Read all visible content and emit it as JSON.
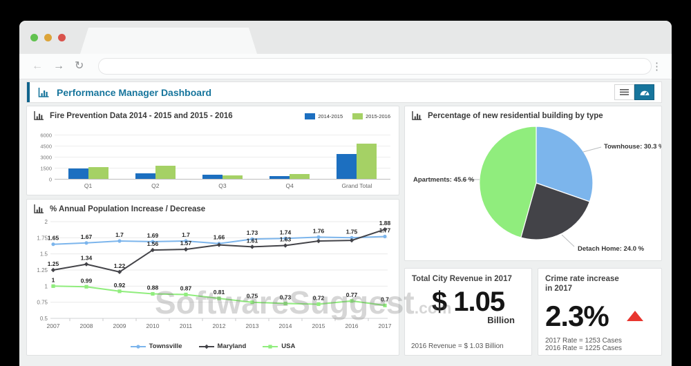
{
  "browser": {
    "back_icon": "←",
    "forward_icon": "→",
    "reload_icon": "↻",
    "menu_icon": "⋮",
    "url_value": ""
  },
  "header": {
    "title": "Performance Manager Dashboard"
  },
  "watermark": {
    "text": "SoftwareSuggest",
    "suffix": ".com"
  },
  "revenue_card": {
    "title": "Total City Revenue in 2017",
    "value": "$ 1.05",
    "unit": "Billion",
    "footnote": "2016 Revenue = $ 1.03 Billion"
  },
  "crime_card": {
    "title_line1": "Crime rate increase",
    "title_line2": "in 2017",
    "value": "2.3%",
    "footnote1": "2017 Rate = 1253 Cases",
    "footnote2": "2016 Rate = 1225 Cases"
  },
  "chart_data": [
    {
      "type": "bar",
      "title": "Fire Prevention Data 2014 - 2015 and 2015 - 2016",
      "categories": [
        "Q1",
        "Q2",
        "Q3",
        "Q4",
        "Grand Total"
      ],
      "series": [
        {
          "name": "2014-2015",
          "color": "#1c6fc0",
          "values": [
            1500,
            800,
            700,
            500,
            3500
          ]
        },
        {
          "name": "2015-2016",
          "color": "#a5d165",
          "values": [
            1650,
            1900,
            600,
            750,
            4900
          ]
        }
      ],
      "ylim": [
        0,
        6000
      ],
      "yticks": [
        0,
        1500,
        3000,
        4500,
        6000
      ],
      "legend_position": "top-right",
      "grid": true
    },
    {
      "type": "pie",
      "title": "Percentage of new residential building by type",
      "start": "top",
      "direction": "clockwise",
      "slices": [
        {
          "label": "Townhouse",
          "value": 30.3,
          "color": "#7cb5ec",
          "label_text": "Townhouse: 30.3 %"
        },
        {
          "label": "Detach Home",
          "value": 24.0,
          "color": "#434348",
          "label_text": "Detach Home: 24.0 %"
        },
        {
          "label": "Apartments",
          "value": 45.6,
          "color": "#90ed7d",
          "label_text": "Apartments: 45.6 %"
        }
      ]
    },
    {
      "type": "line",
      "title": "% Annual Population Increase / Decrease",
      "x": [
        2007,
        2008,
        2009,
        2010,
        2011,
        2012,
        2013,
        2014,
        2015,
        2016,
        2017
      ],
      "ylim": [
        0.5,
        2
      ],
      "yticks": [
        0.5,
        0.75,
        1,
        1.25,
        1.5,
        1.75,
        2
      ],
      "grid": true,
      "legend_position": "bottom",
      "series": [
        {
          "name": "Townsville",
          "color": "#7cb5ec",
          "marker": "circle",
          "values": [
            1.65,
            1.67,
            1.7,
            1.69,
            1.7,
            1.66,
            1.73,
            1.74,
            1.76,
            1.75,
            1.77
          ],
          "labels": [
            "1.65",
            "1.67",
            "1.7",
            "1.69",
            "1.7",
            "1.66",
            "1.73",
            "1.74",
            "1.76",
            "1.75",
            "1.77"
          ]
        },
        {
          "name": "Maryland",
          "color": "#434348",
          "marker": "diamond",
          "values": [
            1.25,
            1.34,
            1.22,
            1.56,
            1.57,
            1.64,
            1.61,
            1.63,
            1.7,
            1.71,
            1.88
          ],
          "labels": [
            "1.25",
            "1.34",
            "1.22",
            "1.56",
            "1.57",
            "",
            "1.61",
            "1.63",
            "",
            "",
            "1.88"
          ]
        },
        {
          "name": "USA",
          "color": "#90ed7d",
          "marker": "square",
          "values": [
            1,
            0.99,
            0.92,
            0.88,
            0.87,
            0.81,
            0.75,
            0.73,
            0.72,
            0.77,
            0.7
          ],
          "labels": [
            "1",
            "0.99",
            "0.92",
            "0.88",
            "0.87",
            "0.81",
            "0.75",
            "0.73",
            "0.72",
            "0.77",
            "0.7"
          ]
        }
      ]
    }
  ]
}
